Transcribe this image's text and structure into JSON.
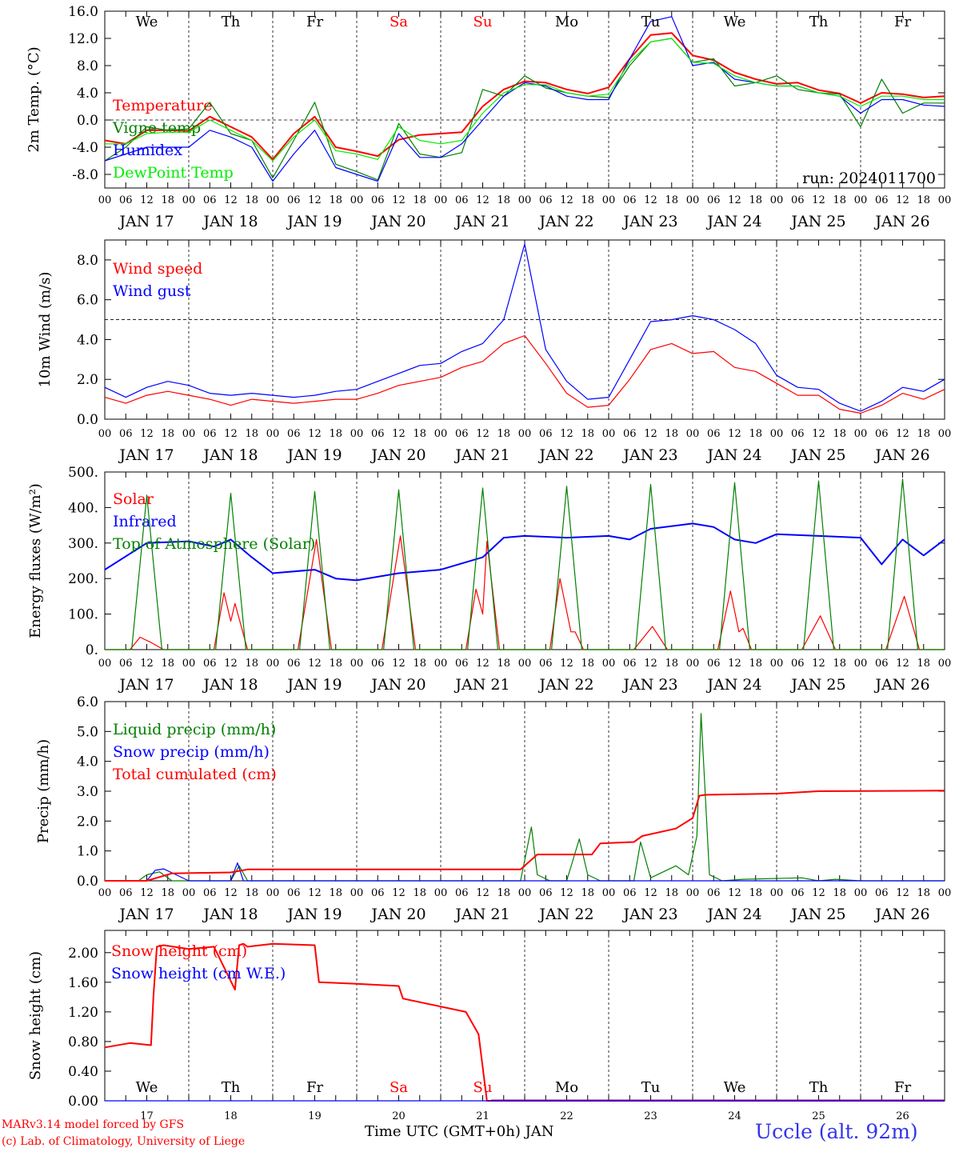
{
  "footer": {
    "model": "MARv3.14 model forced by GFS",
    "credit": "(c) Lab. of Climatology, University of Liege",
    "xlabel": "Time UTC (GMT+0h) JAN",
    "station": "Uccle (alt. 92m)"
  },
  "colors": {
    "red": "#ff0000",
    "green": "#008000",
    "blue": "#0000ff",
    "lime": "#00ee00",
    "purple": "#800080"
  },
  "x_axis": {
    "hour_ticks": [
      "00",
      "06",
      "12",
      "18"
    ],
    "day_labels": [
      "JAN 17",
      "JAN 18",
      "JAN 19",
      "JAN 20",
      "JAN 21",
      "JAN 22",
      "JAN 23",
      "JAN 24",
      "JAN 25",
      "JAN 26"
    ],
    "weekday_labels": [
      "We",
      "Th",
      "Fr",
      "Sa",
      "Su",
      "Mo",
      "Tu",
      "We",
      "Th",
      "Fr"
    ],
    "weekend_flags": [
      false,
      false,
      false,
      true,
      true,
      false,
      false,
      false,
      false,
      false
    ],
    "date_numbers": [
      "17",
      "18",
      "19",
      "20",
      "21",
      "22",
      "23",
      "24",
      "25",
      "26"
    ]
  },
  "chart_data": [
    {
      "type": "line",
      "ylabel": "2m Temp. (°C)",
      "ylim": [
        -10,
        16
      ],
      "yticks": [
        "16.0",
        "12.0",
        "8.0",
        "4.0",
        "0.0",
        "-4.0",
        "-8.0"
      ],
      "annotation": "run: 2024011700",
      "x_unit": "days since JAN 17 00 UTC",
      "series": [
        {
          "name": "Temperature",
          "color": "#ff0000",
          "x": [
            0,
            0.25,
            0.5,
            0.75,
            1,
            1.25,
            1.5,
            1.75,
            2,
            2.25,
            2.5,
            2.75,
            3,
            3.25,
            3.5,
            3.75,
            4,
            4.25,
            4.5,
            4.75,
            5,
            5.25,
            5.5,
            5.75,
            6,
            6.25,
            6.5,
            6.75,
            7,
            7.25,
            7.5,
            7.75,
            8,
            8.25,
            8.5,
            8.75,
            9,
            9.25,
            9.5,
            9.75,
            10
          ],
          "values": [
            -3,
            -3.5,
            -1.5,
            -1.5,
            -1.6,
            0.5,
            -1,
            -2.5,
            -5.8,
            -2,
            0.5,
            -4,
            -4.6,
            -5.3,
            -2.9,
            -2.2,
            -2,
            -1.8,
            2,
            4.5,
            5.7,
            5.5,
            4.5,
            3.9,
            4.8,
            9,
            12.5,
            12.8,
            9.5,
            8.8,
            7,
            6,
            5.3,
            5.5,
            4.4,
            3.9,
            2.5,
            4,
            3.8,
            3.3,
            3.5
          ]
        },
        {
          "name": "Vigne temp",
          "color": "#008000",
          "x": [
            0,
            0.25,
            0.5,
            0.75,
            1,
            1.25,
            1.5,
            1.75,
            2,
            2.25,
            2.5,
            2.75,
            3,
            3.25,
            3.5,
            3.75,
            4,
            4.25,
            4.5,
            4.75,
            5,
            5.25,
            5.5,
            5.75,
            6,
            6.25,
            6.5,
            6.75,
            7,
            7.25,
            7.5,
            7.75,
            8,
            8.25,
            8.5,
            8.75,
            9,
            9.25,
            9.5,
            9.75,
            10
          ],
          "values": [
            -6,
            -4,
            -1,
            -1.5,
            -1.3,
            2.6,
            -2,
            -3,
            -8.5,
            -3,
            2.6,
            -6.5,
            -7.6,
            -8.8,
            -0.5,
            -5,
            -5.5,
            -4.8,
            4.5,
            3.5,
            6.5,
            4.7,
            4,
            3.5,
            3.3,
            8,
            11.5,
            12,
            8.5,
            9,
            5,
            5.5,
            6.5,
            4.5,
            4,
            3.8,
            -1,
            6,
            1,
            2.5,
            2.5
          ]
        },
        {
          "name": "Humidex",
          "color": "#0000ff",
          "x": [
            0,
            0.25,
            0.5,
            0.75,
            1,
            1.25,
            1.5,
            1.75,
            2,
            2.25,
            2.5,
            2.75,
            3,
            3.25,
            3.5,
            3.75,
            4,
            4.25,
            4.5,
            4.75,
            5,
            5.25,
            5.5,
            5.75,
            6,
            6.25,
            6.5,
            6.75,
            7,
            7.25,
            7.5,
            7.75,
            8,
            8.25,
            8.5,
            8.75,
            9,
            9.25,
            9.5,
            9.75,
            10
          ],
          "values": [
            -6,
            -5,
            -4,
            -4,
            -4,
            -1.5,
            -2.5,
            -4,
            -9,
            -5,
            -1.5,
            -7,
            -8,
            -9,
            -2,
            -5.5,
            -5.5,
            -3.5,
            0,
            3.5,
            5.5,
            5,
            3.5,
            3,
            3,
            9,
            14.5,
            15.2,
            8,
            8.5,
            6,
            5.5,
            5,
            5,
            4,
            3.5,
            1,
            3,
            3,
            2.2,
            2
          ]
        },
        {
          "name": "DewPoint Temp",
          "color": "#00ee00",
          "x": [
            0,
            0.25,
            0.5,
            0.75,
            1,
            1.25,
            1.5,
            1.75,
            2,
            2.25,
            2.5,
            2.75,
            3,
            3.25,
            3.5,
            3.75,
            4,
            4.25,
            4.5,
            4.75,
            5,
            5.25,
            5.5,
            5.75,
            6,
            6.25,
            6.5,
            6.75,
            7,
            7.25,
            7.5,
            7.75,
            8,
            8.25,
            8.5,
            8.75,
            9,
            9.25,
            9.5,
            9.75,
            10
          ],
          "values": [
            -3.5,
            -3.5,
            -2,
            -1.8,
            -1.8,
            0,
            -1.5,
            -3,
            -6,
            -2.5,
            0,
            -4.5,
            -5,
            -5.8,
            -1,
            -3,
            -3.5,
            -3,
            1,
            4,
            5.2,
            5.2,
            4,
            3.5,
            3.8,
            8.5,
            11.5,
            12,
            8.5,
            8.3,
            6.5,
            5.5,
            5,
            5,
            4,
            3.5,
            2,
            3.5,
            3.5,
            3,
            3
          ]
        }
      ]
    },
    {
      "type": "line",
      "ylabel": "10m Wind (m/s)",
      "ylim": [
        0,
        9
      ],
      "yticks": [
        "8.0",
        "6.0",
        "4.0",
        "2.0",
        "0.0"
      ],
      "x_unit": "days since JAN 17 00 UTC",
      "series": [
        {
          "name": "Wind speed",
          "color": "#ff0000",
          "x": [
            0,
            0.25,
            0.5,
            0.75,
            1,
            1.25,
            1.5,
            1.75,
            2,
            2.25,
            2.5,
            2.75,
            3,
            3.25,
            3.5,
            3.75,
            4,
            4.25,
            4.5,
            4.75,
            5,
            5.25,
            5.5,
            5.75,
            6,
            6.25,
            6.5,
            6.75,
            7,
            7.25,
            7.5,
            7.75,
            8,
            8.25,
            8.5,
            8.75,
            9,
            9.25,
            9.5,
            9.75,
            10
          ],
          "values": [
            1.1,
            0.8,
            1.2,
            1.4,
            1.2,
            1,
            0.7,
            1,
            0.9,
            0.8,
            0.9,
            1,
            1,
            1.3,
            1.7,
            1.9,
            2.1,
            2.6,
            2.9,
            3.8,
            4.2,
            2.8,
            1.3,
            0.6,
            0.7,
            2,
            3.5,
            3.8,
            3.3,
            3.4,
            2.6,
            2.4,
            1.8,
            1.2,
            1.2,
            0.5,
            0.3,
            0.7,
            1.3,
            1,
            1.5
          ]
        },
        {
          "name": "Wind gust",
          "color": "#0000ff",
          "x": [
            0,
            0.25,
            0.5,
            0.75,
            1,
            1.25,
            1.5,
            1.75,
            2,
            2.25,
            2.5,
            2.75,
            3,
            3.25,
            3.5,
            3.75,
            4,
            4.25,
            4.5,
            4.75,
            5,
            5.25,
            5.5,
            5.75,
            6,
            6.25,
            6.5,
            6.75,
            7,
            7.25,
            7.5,
            7.75,
            8,
            8.25,
            8.5,
            8.75,
            9,
            9.25,
            9.5,
            9.75,
            10
          ],
          "values": [
            1.6,
            1.1,
            1.6,
            1.9,
            1.7,
            1.3,
            1.2,
            1.3,
            1.2,
            1.1,
            1.2,
            1.4,
            1.5,
            1.9,
            2.3,
            2.7,
            2.8,
            3.4,
            3.8,
            5,
            8.8,
            3.5,
            1.9,
            1,
            1.1,
            3,
            4.9,
            5,
            5.2,
            5,
            4.5,
            3.8,
            2.2,
            1.6,
            1.5,
            0.8,
            0.4,
            0.9,
            1.6,
            1.4,
            2
          ]
        }
      ],
      "reference_line": 5.0
    },
    {
      "type": "line",
      "ylabel": "Energy fluxes (W/m²)",
      "ylim": [
        0,
        500
      ],
      "yticks": [
        "500.",
        "400.",
        "300.",
        "200.",
        "100.",
        "0."
      ],
      "x_unit": "days since JAN 17 00 UTC",
      "series": [
        {
          "name": "Solar",
          "color": "#ff0000",
          "x": [
            0,
            0.3,
            0.42,
            0.55,
            0.7,
            1,
            1.3,
            1.42,
            1.5,
            1.55,
            1.7,
            2,
            2.3,
            2.52,
            2.7,
            3,
            3.3,
            3.52,
            3.7,
            4,
            4.3,
            4.42,
            4.5,
            4.55,
            4.7,
            5,
            5.3,
            5.42,
            5.55,
            5.6,
            5.7,
            6,
            6.3,
            6.52,
            6.7,
            7,
            7.3,
            7.45,
            7.55,
            7.6,
            7.7,
            8,
            8.3,
            8.52,
            8.7,
            9,
            9.3,
            9.52,
            9.7,
            10
          ],
          "values": [
            0,
            0,
            35,
            20,
            0,
            0,
            0,
            160,
            80,
            130,
            0,
            0,
            0,
            310,
            0,
            0,
            0,
            320,
            0,
            0,
            0,
            170,
            100,
            305,
            0,
            0,
            0,
            200,
            50,
            50,
            0,
            0,
            0,
            65,
            0,
            0,
            0,
            165,
            50,
            60,
            0,
            0,
            0,
            95,
            0,
            0,
            0,
            150,
            0,
            0
          ]
        },
        {
          "name": "Infrared",
          "color": "#0000ff",
          "x": [
            0,
            0.5,
            1,
            1.3,
            1.5,
            1.75,
            2,
            2.5,
            2.75,
            3,
            3.5,
            4,
            4.5,
            4.75,
            5,
            5.5,
            6,
            6.25,
            6.5,
            7,
            7.25,
            7.5,
            7.75,
            8,
            8.5,
            9,
            9.25,
            9.5,
            9.75,
            10
          ],
          "values": [
            225,
            300,
            305,
            290,
            310,
            260,
            215,
            225,
            200,
            195,
            215,
            225,
            260,
            315,
            320,
            315,
            320,
            310,
            340,
            355,
            345,
            310,
            300,
            325,
            320,
            315,
            240,
            310,
            265,
            310
          ]
        },
        {
          "name": "Top of Atmosphere (Solar)",
          "color": "#008000",
          "x": [
            0,
            0.32,
            0.5,
            0.68,
            1,
            1.32,
            1.5,
            1.68,
            2,
            2.32,
            2.5,
            2.68,
            3,
            3.32,
            3.5,
            3.68,
            4,
            4.32,
            4.5,
            4.68,
            5,
            5.32,
            5.5,
            5.68,
            6,
            6.32,
            6.5,
            6.68,
            7,
            7.32,
            7.5,
            7.68,
            8,
            8.32,
            8.5,
            8.68,
            9,
            9.32,
            9.5,
            9.68,
            10
          ],
          "values": [
            0,
            0,
            435,
            0,
            0,
            0,
            440,
            0,
            0,
            0,
            445,
            0,
            0,
            0,
            450,
            0,
            0,
            0,
            455,
            0,
            0,
            0,
            460,
            0,
            0,
            0,
            465,
            0,
            0,
            0,
            470,
            0,
            0,
            0,
            475,
            0,
            0,
            0,
            480,
            0,
            0
          ]
        }
      ]
    },
    {
      "type": "line",
      "ylabel": "Precip (mm/h)",
      "ylim": [
        0,
        6
      ],
      "yticks": [
        "6.0",
        "5.0",
        "4.0",
        "3.0",
        "2.0",
        "1.0",
        "0.0"
      ],
      "x_unit": "days since JAN 17 00 UTC",
      "series": [
        {
          "name": "Liquid precip (mm/h)",
          "color": "#008000",
          "x": [
            0,
            0.4,
            0.5,
            0.65,
            0.8,
            1.5,
            1.6,
            1.7,
            2,
            4.95,
            5.08,
            5.15,
            5.3,
            5.5,
            5.65,
            5.75,
            5.9,
            6.3,
            6.38,
            6.5,
            6.8,
            6.95,
            7.05,
            7.1,
            7.2,
            7.35,
            7.6,
            8.3,
            8.5,
            8.7,
            9,
            10
          ],
          "values": [
            0,
            0,
            0.2,
            0.3,
            0,
            0,
            0.5,
            0,
            0,
            0,
            1.8,
            0.2,
            0,
            0,
            1.4,
            0.2,
            0,
            0,
            1.3,
            0.1,
            0.5,
            0.2,
            1.5,
            5.6,
            0.2,
            0,
            0.05,
            0.1,
            0,
            0.05,
            0,
            0
          ]
        },
        {
          "name": "Snow precip (mm/h)",
          "color": "#0000ff",
          "x": [
            0,
            0.5,
            0.6,
            0.7,
            0.85,
            1,
            1.5,
            1.58,
            1.65,
            2,
            10
          ],
          "values": [
            0,
            0,
            0.35,
            0.4,
            0.2,
            0,
            0,
            0.6,
            0,
            0,
            0
          ]
        },
        {
          "name": "Total cumulated (cm)",
          "color": "#ff0000",
          "x": [
            0,
            0.5,
            0.8,
            1.5,
            1.7,
            4.95,
            5.15,
            5.3,
            5.8,
            5.9,
            6.3,
            6.4,
            6.8,
            7,
            7.08,
            7.15,
            8,
            8.5,
            10
          ],
          "values": [
            0,
            0,
            0.25,
            0.28,
            0.38,
            0.38,
            0.88,
            0.88,
            0.88,
            1.25,
            1.3,
            1.5,
            1.75,
            2.1,
            2.85,
            2.88,
            2.92,
            3,
            3.02
          ]
        }
      ]
    },
    {
      "type": "line",
      "ylabel": "Snow height (cm)",
      "ylim": [
        0,
        2.3
      ],
      "yticks": [
        "2.00",
        "1.60",
        "1.20",
        "0.80",
        "0.40",
        "0.00"
      ],
      "x_unit": "days since JAN 17 00 UTC",
      "series": [
        {
          "name": "Snow height (cm)",
          "color": "#ff0000",
          "x": [
            0,
            0.3,
            0.55,
            0.58,
            0.62,
            0.7,
            1,
            1.3,
            1.55,
            1.6,
            1.65,
            1.7,
            2,
            2.5,
            2.55,
            3,
            3.5,
            3.55,
            4.3,
            4.45,
            4.55,
            10
          ],
          "values": [
            0.72,
            0.78,
            0.75,
            1.42,
            2.08,
            2.1,
            2.05,
            2.08,
            1.5,
            2.1,
            2.12,
            2.08,
            2.12,
            2.1,
            1.6,
            1.58,
            1.55,
            1.38,
            1.2,
            0.9,
            0,
            0
          ]
        },
        {
          "name": "Snow height (cm W.E.)",
          "color": "#0000ff",
          "x": [
            0,
            10
          ],
          "values": [
            0,
            0
          ]
        }
      ]
    }
  ]
}
